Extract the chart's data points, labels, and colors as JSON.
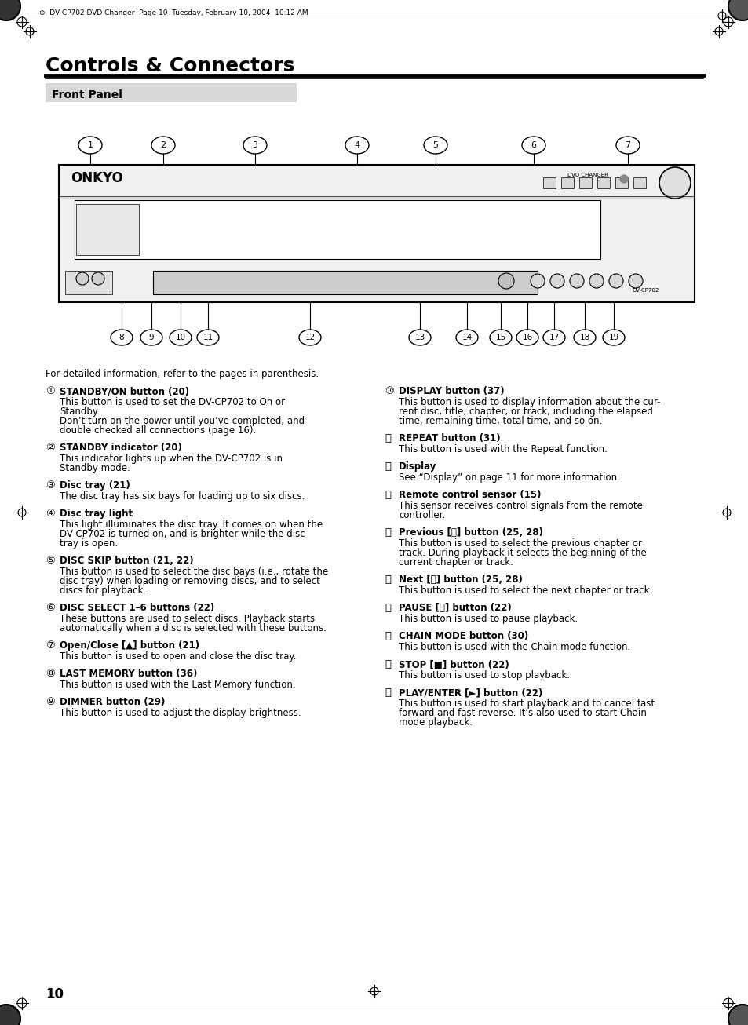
{
  "page_title": "Controls & Connectors",
  "section_title": "Front Panel",
  "header_text": "DV-CP702 DVD Changer  Page 10  Tuesday, February 10, 2004  10:12 AM",
  "page_number": "10",
  "intro_text": "For detailed information, refer to the pages in parenthesis.",
  "left_items": [
    {
      "num": "1",
      "title": "STANDBY/ON button (20)",
      "body": "This button is used to set the DV-CP702 to On or\nStandby.\nDon’t turn on the power until you’ve completed, and\ndouble checked all connections (page 16)."
    },
    {
      "num": "2",
      "title": "STANDBY indicator (20)",
      "body": "This indicator lights up when the DV-CP702 is in\nStandby mode."
    },
    {
      "num": "3",
      "title": "Disc tray (21)",
      "body": "The disc tray has six bays for loading up to six discs."
    },
    {
      "num": "4",
      "title": "Disc tray light",
      "body": "This light illuminates the disc tray. It comes on when the\nDV-CP702 is turned on, and is brighter while the disc\ntray is open."
    },
    {
      "num": "5",
      "title": "DISC SKIP button (21, 22)",
      "body": "This button is used to select the disc bays (i.e., rotate the\ndisc tray) when loading or removing discs, and to select\ndiscs for playback."
    },
    {
      "num": "6",
      "title": "DISC SELECT 1–6 buttons (22)",
      "body": "These buttons are used to select discs. Playback starts\nautomatically when a disc is selected with these buttons."
    },
    {
      "num": "7",
      "title": "Open/Close [▲] button (21)",
      "body": "This button is used to open and close the disc tray."
    },
    {
      "num": "8",
      "title": "LAST MEMORY button (36)",
      "body": "This button is used with the Last Memory function."
    },
    {
      "num": "9",
      "title": "DIMMER button (29)",
      "body": "This button is used to adjust the display brightness."
    }
  ],
  "right_items": [
    {
      "num": "10",
      "title": "DISPLAY button (37)",
      "body": "This button is used to display information about the cur-\nrent disc, title, chapter, or track, including the elapsed\ntime, remaining time, total time, and so on."
    },
    {
      "num": "11",
      "title": "REPEAT button (31)",
      "body": "This button is used with the Repeat function."
    },
    {
      "num": "12",
      "title": "Display",
      "body": "See “Display” on page 11 for more information."
    },
    {
      "num": "13",
      "title": "Remote control sensor (15)",
      "body": "This sensor receives control signals from the remote\ncontroller."
    },
    {
      "num": "14",
      "title": "Previous [⏮] button (25, 28)",
      "body": "This button is used to select the previous chapter or\ntrack. During playback it selects the beginning of the\ncurrent chapter or track."
    },
    {
      "num": "15",
      "title": "Next [⏭] button (25, 28)",
      "body": "This button is used to select the next chapter or track."
    },
    {
      "num": "16",
      "title": "PAUSE [⏸] button (22)",
      "body": "This button is used to pause playback."
    },
    {
      "num": "17",
      "title": "CHAIN MODE button (30)",
      "body": "This button is used with the Chain mode function."
    },
    {
      "num": "18",
      "title": "STOP [■] button (22)",
      "body": "This button is used to stop playback."
    },
    {
      "num": "19",
      "title": "PLAY/ENTER [►] button (22)",
      "body": "This button is used to start playback and to cancel fast\nforward and fast reverse. It’s also used to start Chain\nmode playback."
    }
  ],
  "bg_color": "#ffffff",
  "text_color": "#000000",
  "title_fontsize": 18,
  "section_bg": "#d8d8d8"
}
